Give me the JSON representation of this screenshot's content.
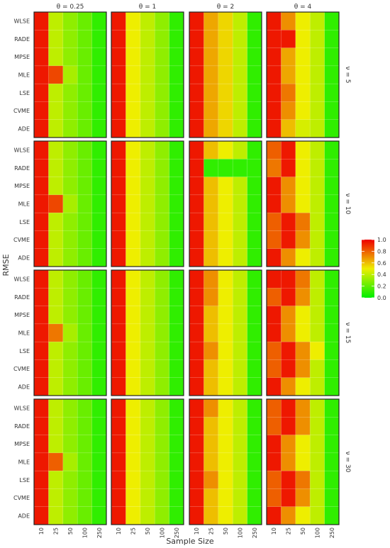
{
  "chart_data": {
    "type": "heatmap",
    "xlabel": "Sample Size",
    "ylabel": "RMSE",
    "x_categories": [
      "10",
      "25",
      "50",
      "100",
      "250"
    ],
    "y_categories": [
      "WLSE",
      "RADE",
      "MPSE",
      "MLE",
      "LSE",
      "CVME",
      "ADE"
    ],
    "col_facets": [
      {
        "key": "t025",
        "label": "θ = 0.25"
      },
      {
        "key": "t1",
        "label": "θ = 1"
      },
      {
        "key": "t2",
        "label": "θ = 2"
      },
      {
        "key": "t4",
        "label": "θ = 4"
      }
    ],
    "row_facets": [
      {
        "key": "v5",
        "label": "ν = 5"
      },
      {
        "key": "v10",
        "label": "ν = 10"
      },
      {
        "key": "v15",
        "label": "ν = 15"
      },
      {
        "key": "v30",
        "label": "ν = 30"
      }
    ],
    "legend": {
      "position": "right",
      "range": [
        0.0,
        1.0
      ],
      "breaks": [
        "1.0",
        "0.8",
        "0.6",
        "0.4",
        "0.2",
        "0.0"
      ],
      "colors": [
        "#00ee00",
        "#eeee00",
        "#ee0000"
      ]
    },
    "panels": {
      "v5": {
        "t025": [
          [
            0.95,
            0.4,
            0.3,
            0.22,
            0.1
          ],
          [
            0.95,
            0.4,
            0.3,
            0.22,
            0.1
          ],
          [
            0.95,
            0.4,
            0.3,
            0.22,
            0.1
          ],
          [
            0.95,
            0.85,
            0.35,
            0.22,
            0.1
          ],
          [
            0.95,
            0.4,
            0.3,
            0.22,
            0.1
          ],
          [
            0.95,
            0.4,
            0.3,
            0.22,
            0.1
          ],
          [
            0.95,
            0.4,
            0.3,
            0.22,
            0.1
          ]
        ],
        "t1": [
          [
            0.95,
            0.5,
            0.4,
            0.3,
            0.1
          ],
          [
            0.95,
            0.5,
            0.4,
            0.3,
            0.1
          ],
          [
            0.95,
            0.5,
            0.4,
            0.3,
            0.1
          ],
          [
            0.95,
            0.5,
            0.4,
            0.3,
            0.1
          ],
          [
            0.95,
            0.5,
            0.4,
            0.3,
            0.1
          ],
          [
            0.95,
            0.5,
            0.4,
            0.3,
            0.1
          ],
          [
            0.95,
            0.5,
            0.4,
            0.3,
            0.1
          ]
        ],
        "t2": [
          [
            0.95,
            0.65,
            0.55,
            0.4,
            0.1
          ],
          [
            0.95,
            0.65,
            0.55,
            0.4,
            0.1
          ],
          [
            0.95,
            0.65,
            0.55,
            0.4,
            0.1
          ],
          [
            0.95,
            0.65,
            0.55,
            0.4,
            0.1
          ],
          [
            0.95,
            0.65,
            0.55,
            0.4,
            0.1
          ],
          [
            0.95,
            0.65,
            0.55,
            0.4,
            0.1
          ],
          [
            0.95,
            0.65,
            0.55,
            0.4,
            0.1
          ]
        ],
        "t4": [
          [
            0.95,
            0.7,
            0.5,
            0.4,
            0.1
          ],
          [
            0.95,
            0.95,
            0.5,
            0.4,
            0.1
          ],
          [
            0.95,
            0.65,
            0.5,
            0.4,
            0.1
          ],
          [
            0.95,
            0.65,
            0.5,
            0.4,
            0.1
          ],
          [
            0.95,
            0.75,
            0.5,
            0.4,
            0.1
          ],
          [
            0.95,
            0.7,
            0.5,
            0.4,
            0.1
          ],
          [
            0.95,
            0.6,
            0.45,
            0.4,
            0.1
          ]
        ]
      },
      "v10": {
        "t025": [
          [
            0.95,
            0.4,
            0.3,
            0.22,
            0.1
          ],
          [
            0.95,
            0.4,
            0.3,
            0.22,
            0.1
          ],
          [
            0.95,
            0.4,
            0.3,
            0.22,
            0.1
          ],
          [
            0.95,
            0.85,
            0.35,
            0.22,
            0.1
          ],
          [
            0.95,
            0.4,
            0.3,
            0.22,
            0.1
          ],
          [
            0.95,
            0.4,
            0.3,
            0.22,
            0.1
          ],
          [
            0.95,
            0.4,
            0.3,
            0.22,
            0.1
          ]
        ],
        "t1": [
          [
            0.95,
            0.5,
            0.4,
            0.3,
            0.1
          ],
          [
            0.95,
            0.5,
            0.4,
            0.3,
            0.1
          ],
          [
            0.95,
            0.5,
            0.4,
            0.3,
            0.1
          ],
          [
            0.95,
            0.5,
            0.4,
            0.3,
            0.1
          ],
          [
            0.95,
            0.5,
            0.4,
            0.3,
            0.1
          ],
          [
            0.95,
            0.5,
            0.4,
            0.3,
            0.1
          ],
          [
            0.95,
            0.5,
            0.4,
            0.3,
            0.1
          ]
        ],
        "t2": [
          [
            0.95,
            0.6,
            0.5,
            0.4,
            0.1
          ],
          [
            0.95,
            0.1,
            0.1,
            0.1,
            0.1
          ],
          [
            0.95,
            0.6,
            0.5,
            0.4,
            0.1
          ],
          [
            0.95,
            0.6,
            0.5,
            0.4,
            0.1
          ],
          [
            0.95,
            0.6,
            0.5,
            0.4,
            0.1
          ],
          [
            0.95,
            0.6,
            0.5,
            0.4,
            0.1
          ],
          [
            0.95,
            0.6,
            0.5,
            0.4,
            0.1
          ]
        ],
        "t4": [
          [
            0.8,
            0.95,
            0.5,
            0.4,
            0.1
          ],
          [
            0.75,
            0.95,
            0.5,
            0.4,
            0.1
          ],
          [
            0.95,
            0.7,
            0.5,
            0.4,
            0.1
          ],
          [
            0.95,
            0.7,
            0.5,
            0.4,
            0.1
          ],
          [
            0.8,
            0.95,
            0.75,
            0.4,
            0.1
          ],
          [
            0.8,
            0.95,
            0.7,
            0.4,
            0.1
          ],
          [
            0.95,
            0.7,
            0.5,
            0.4,
            0.1
          ]
        ]
      },
      "v15": {
        "t025": [
          [
            0.95,
            0.4,
            0.3,
            0.22,
            0.1
          ],
          [
            0.95,
            0.4,
            0.3,
            0.22,
            0.1
          ],
          [
            0.95,
            0.4,
            0.3,
            0.22,
            0.1
          ],
          [
            0.95,
            0.75,
            0.35,
            0.22,
            0.1
          ],
          [
            0.95,
            0.4,
            0.3,
            0.22,
            0.1
          ],
          [
            0.95,
            0.4,
            0.3,
            0.22,
            0.1
          ],
          [
            0.95,
            0.4,
            0.3,
            0.22,
            0.1
          ]
        ],
        "t1": [
          [
            0.95,
            0.5,
            0.4,
            0.3,
            0.1
          ],
          [
            0.95,
            0.5,
            0.4,
            0.3,
            0.1
          ],
          [
            0.95,
            0.5,
            0.4,
            0.3,
            0.1
          ],
          [
            0.95,
            0.5,
            0.4,
            0.3,
            0.1
          ],
          [
            0.95,
            0.5,
            0.4,
            0.3,
            0.1
          ],
          [
            0.95,
            0.5,
            0.4,
            0.3,
            0.1
          ],
          [
            0.95,
            0.5,
            0.4,
            0.3,
            0.1
          ]
        ],
        "t2": [
          [
            0.95,
            0.7,
            0.5,
            0.4,
            0.1
          ],
          [
            0.95,
            0.7,
            0.5,
            0.4,
            0.1
          ],
          [
            0.95,
            0.6,
            0.5,
            0.4,
            0.1
          ],
          [
            0.95,
            0.6,
            0.5,
            0.4,
            0.1
          ],
          [
            0.95,
            0.7,
            0.5,
            0.4,
            0.1
          ],
          [
            0.95,
            0.6,
            0.5,
            0.4,
            0.1
          ],
          [
            0.95,
            0.6,
            0.5,
            0.4,
            0.1
          ]
        ],
        "t4": [
          [
            0.95,
            0.95,
            0.75,
            0.4,
            0.1
          ],
          [
            0.8,
            0.95,
            0.7,
            0.4,
            0.1
          ],
          [
            0.95,
            0.7,
            0.5,
            0.4,
            0.1
          ],
          [
            0.95,
            0.7,
            0.5,
            0.4,
            0.1
          ],
          [
            0.8,
            0.95,
            0.7,
            0.5,
            0.1
          ],
          [
            0.8,
            0.95,
            0.7,
            0.4,
            0.1
          ],
          [
            0.95,
            0.7,
            0.5,
            0.4,
            0.1
          ]
        ]
      },
      "v30": {
        "t025": [
          [
            0.95,
            0.4,
            0.3,
            0.22,
            0.1
          ],
          [
            0.95,
            0.4,
            0.3,
            0.22,
            0.1
          ],
          [
            0.95,
            0.4,
            0.3,
            0.22,
            0.1
          ],
          [
            0.95,
            0.8,
            0.35,
            0.22,
            0.1
          ],
          [
            0.95,
            0.4,
            0.3,
            0.22,
            0.1
          ],
          [
            0.95,
            0.4,
            0.3,
            0.22,
            0.1
          ],
          [
            0.95,
            0.4,
            0.3,
            0.22,
            0.1
          ]
        ],
        "t1": [
          [
            0.95,
            0.5,
            0.4,
            0.3,
            0.1
          ],
          [
            0.95,
            0.5,
            0.4,
            0.3,
            0.1
          ],
          [
            0.95,
            0.5,
            0.4,
            0.3,
            0.1
          ],
          [
            0.95,
            0.5,
            0.4,
            0.3,
            0.1
          ],
          [
            0.95,
            0.5,
            0.4,
            0.3,
            0.1
          ],
          [
            0.95,
            0.5,
            0.4,
            0.3,
            0.1
          ],
          [
            0.95,
            0.5,
            0.4,
            0.3,
            0.1
          ]
        ],
        "t2": [
          [
            0.95,
            0.7,
            0.5,
            0.4,
            0.1
          ],
          [
            0.95,
            0.6,
            0.5,
            0.4,
            0.1
          ],
          [
            0.95,
            0.6,
            0.5,
            0.4,
            0.1
          ],
          [
            0.95,
            0.6,
            0.5,
            0.4,
            0.1
          ],
          [
            0.95,
            0.7,
            0.5,
            0.4,
            0.1
          ],
          [
            0.95,
            0.6,
            0.5,
            0.4,
            0.1
          ],
          [
            0.95,
            0.6,
            0.5,
            0.4,
            0.1
          ]
        ],
        "t4": [
          [
            0.8,
            0.95,
            0.7,
            0.4,
            0.1
          ],
          [
            0.8,
            0.95,
            0.7,
            0.4,
            0.1
          ],
          [
            0.95,
            0.7,
            0.5,
            0.4,
            0.1
          ],
          [
            0.95,
            0.7,
            0.5,
            0.4,
            0.1
          ],
          [
            0.8,
            0.95,
            0.75,
            0.4,
            0.1
          ],
          [
            0.8,
            0.95,
            0.7,
            0.4,
            0.1
          ],
          [
            0.95,
            0.7,
            0.5,
            0.4,
            0.1
          ]
        ]
      }
    }
  }
}
